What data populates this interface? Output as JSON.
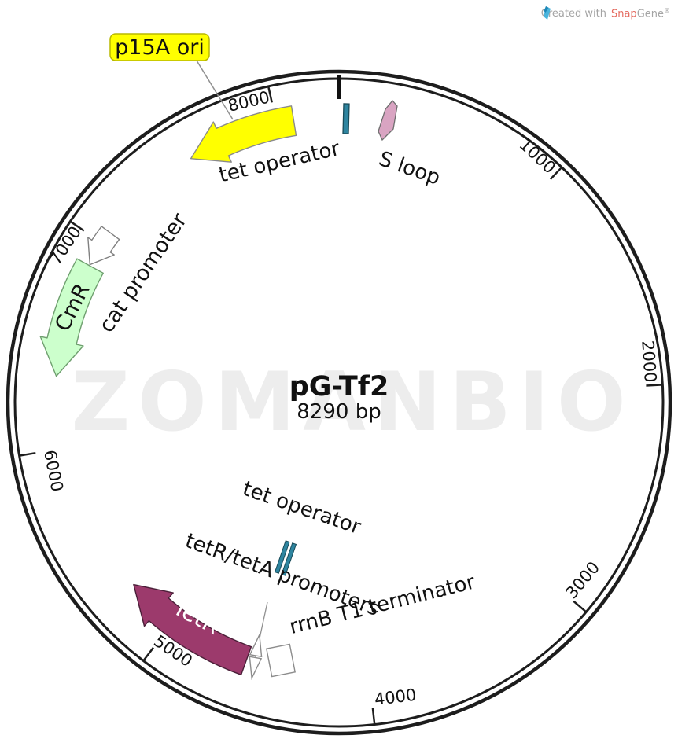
{
  "header": {
    "created_with_prefix": "Created with",
    "brand_snap": "Snap",
    "brand_gene": "Gene",
    "registered_mark": "®"
  },
  "watermark": "ZOMANBIO",
  "colors": {
    "ring": "#1d1d1d",
    "watermark": "#ededed",
    "brand_snap": "#e4695e",
    "brand_icon_blue": "#49b4dc",
    "callout_fill": "#ffff00",
    "teal_operator": "#2e85a0"
  },
  "chart_data": {
    "type": "plasmid-map",
    "title": "pG-Tf2",
    "subtitle": "8290 bp",
    "length_bp": 8290,
    "tick_interval": 1000,
    "ticks": [
      {
        "bp": 1000,
        "label": "1000"
      },
      {
        "bp": 2000,
        "label": "2000"
      },
      {
        "bp": 3000,
        "label": "3000"
      },
      {
        "bp": 4000,
        "label": "4000"
      },
      {
        "bp": 5000,
        "label": "5000"
      },
      {
        "bp": 6000,
        "label": "6000"
      },
      {
        "bp": 7000,
        "label": "7000"
      },
      {
        "bp": 8000,
        "label": "8000"
      }
    ],
    "features": [
      {
        "id": "p15a-ori",
        "name": "p15A ori",
        "start": 7570,
        "end": 8080,
        "direction": "ccw",
        "kind": "arc-arrow",
        "color": "#ffff00",
        "stroke": "#8a8a8a",
        "label_style": "yellow-callout"
      },
      {
        "id": "tet-operator-top",
        "name": "tet operator",
        "position": 30,
        "kind": "radial-bar",
        "color": "#2e85a0"
      },
      {
        "id": "s-loop",
        "name": "S loop",
        "start": 140,
        "end": 260,
        "direction": "ccw",
        "kind": "small-arrow",
        "color": "#d9a4c2"
      },
      {
        "id": "cmr",
        "name": "CmR",
        "start": 6340,
        "end": 6880,
        "direction": "ccw",
        "kind": "arc-arrow",
        "color": "#ccffcc",
        "stroke": "#6f9f6f",
        "label_color": "#000000"
      },
      {
        "id": "cat-promoter",
        "name": "cat promoter",
        "start": 6885,
        "end": 7060,
        "direction": "ccw",
        "kind": "arc-arrow",
        "color": "#ffffff",
        "stroke": "#808080"
      },
      {
        "id": "tet-operator-mid",
        "name": "tet operator",
        "position": 4580,
        "kind": "double-bar-note",
        "color": "#2e85a0"
      },
      {
        "id": "tetr-teta-promoters",
        "name": "tetR/tetA promoters",
        "position": 4620,
        "kind": "bowtie",
        "color": "#ffffff"
      },
      {
        "id": "rrnb-t1-terminator",
        "name": "rrnB T1 terminator",
        "position": 4440,
        "kind": "square",
        "color": "#ffffff"
      },
      {
        "id": "tetr",
        "name": "TetR",
        "start": 4600,
        "end": 5260,
        "direction": "cw",
        "kind": "arc-arrow",
        "color": "#9c3a6c",
        "stroke": "#4a1f38",
        "label_color": "#ffffff"
      }
    ]
  }
}
